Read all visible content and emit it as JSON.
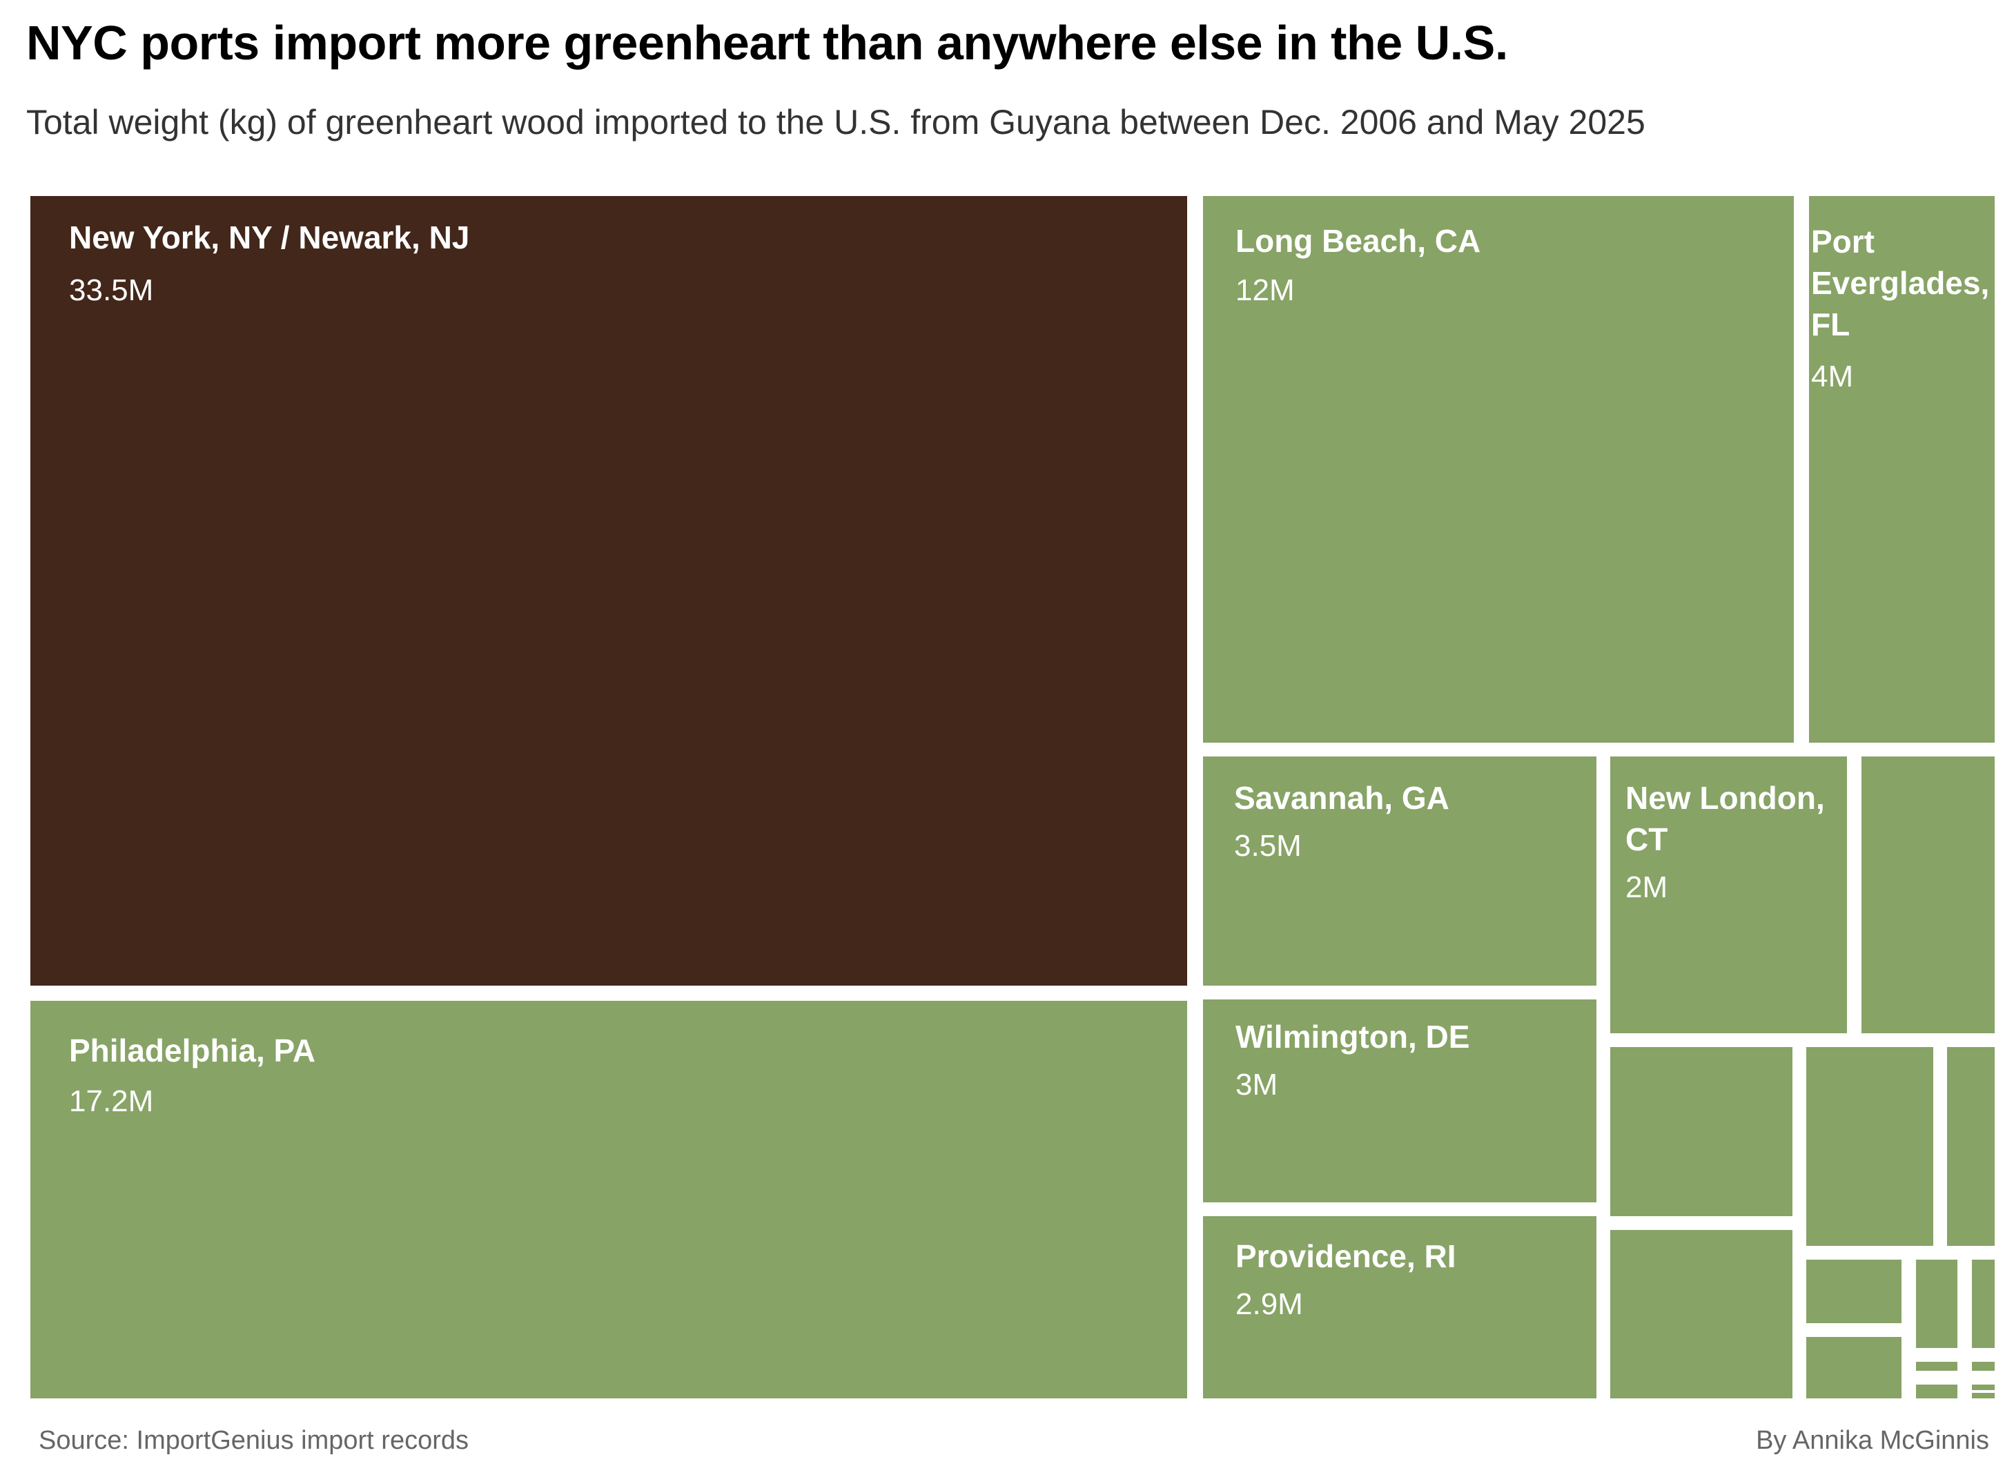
{
  "title": "NYC ports import more greenheart than anywhere else in the U.S.",
  "subtitle": "Total weight (kg) of greenheart wood imported to the U.S. from Guyana between Dec. 2006 and May 2025",
  "source": "Source: ImportGenius import records",
  "byline": "By Annika McGinnis",
  "colors": {
    "highlight": "#42271a",
    "base": "#87a366",
    "label_text": "#ffffff",
    "background": "#ffffff"
  },
  "chart_data": {
    "type": "treemap",
    "unit": "kg",
    "items": [
      {
        "label": "New York, NY / Newark, NJ",
        "value_label": "33.5M",
        "value": 33500000,
        "highlight": true
      },
      {
        "label": "Philadelphia, PA",
        "value_label": "17.2M",
        "value": 17200000
      },
      {
        "label": "Long Beach, CA",
        "value_label": "12M",
        "value": 12000000
      },
      {
        "label": "Port Everglades, FL",
        "value_label": "4M",
        "value": 4000000
      },
      {
        "label": "Savannah, GA",
        "value_label": "3.5M",
        "value": 3500000
      },
      {
        "label": "Wilmington, DE",
        "value_label": "3M",
        "value": 3000000
      },
      {
        "label": "Providence, RI",
        "value_label": "2.9M",
        "value": 2900000
      },
      {
        "label": "New London, CT",
        "value_label": "2M",
        "value": 2000000
      },
      {
        "label": "",
        "value_label": "",
        "value": 1500000
      },
      {
        "label": "",
        "value_label": "",
        "value": 1200000
      },
      {
        "label": "",
        "value_label": "",
        "value": 1100000
      },
      {
        "label": "",
        "value_label": "",
        "value": 900000
      },
      {
        "label": "",
        "value_label": "",
        "value": 400000
      },
      {
        "label": "",
        "value_label": "",
        "value": 300000
      },
      {
        "label": "",
        "value_label": "",
        "value": 270000
      },
      {
        "label": "",
        "value_label": "",
        "value": 170000
      },
      {
        "label": "",
        "value_label": "",
        "value": 120000
      },
      {
        "label": "",
        "value_label": "",
        "value": 40000
      },
      {
        "label": "",
        "value_label": "",
        "value": 30000
      },
      {
        "label": "",
        "value_label": "",
        "value": 30000
      },
      {
        "label": "",
        "value_label": "",
        "value": 30000
      },
      {
        "label": "",
        "value_label": "",
        "value": 30000
      }
    ]
  }
}
